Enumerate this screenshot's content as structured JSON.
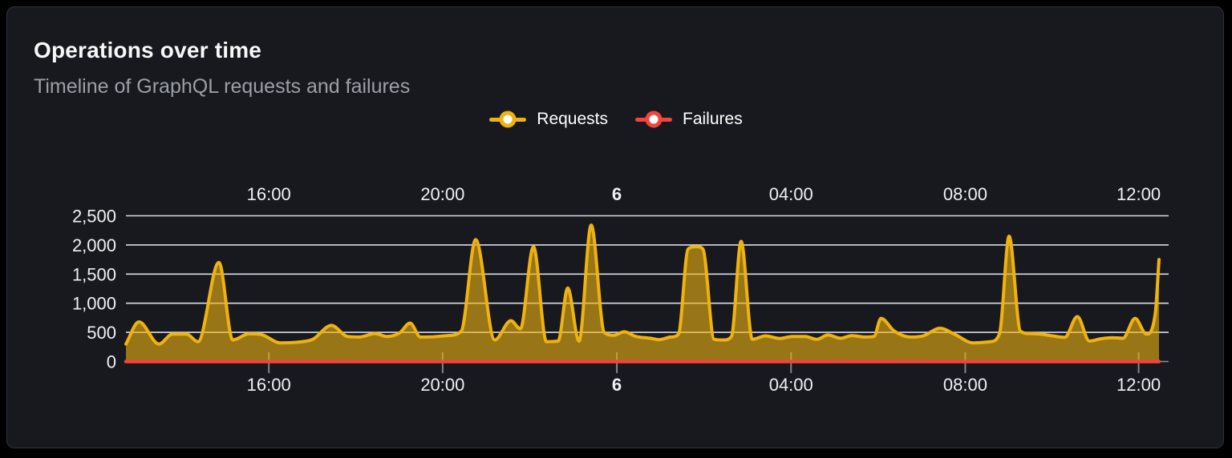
{
  "chart_data": {
    "type": "area",
    "title": "Operations over time",
    "subtitle": "Timeline of GraphQL requests and failures",
    "legend_position": "top-center",
    "grid": "horizontal",
    "x_axis": {
      "unit": "hours-from-start",
      "domain": [
        0,
        23.78
      ],
      "mirrored_top_labels": true,
      "ticks": [
        {
          "t": 3.29,
          "label": "16:00",
          "bold": false
        },
        {
          "t": 7.29,
          "label": "20:00",
          "bold": false
        },
        {
          "t": 11.3,
          "label": "6",
          "bold": true
        },
        {
          "t": 15.31,
          "label": "04:00",
          "bold": false
        },
        {
          "t": 19.32,
          "label": "08:00",
          "bold": false
        },
        {
          "t": 23.31,
          "label": "12:00",
          "bold": false
        }
      ]
    },
    "y_axis": {
      "domain": [
        0,
        2500
      ],
      "ticks": [
        {
          "v": 0,
          "label": "0"
        },
        {
          "v": 500,
          "label": "500"
        },
        {
          "v": 1000,
          "label": "1,000"
        },
        {
          "v": 1500,
          "label": "1,500"
        },
        {
          "v": 2000,
          "label": "2,000"
        },
        {
          "v": 2500,
          "label": "2,500"
        }
      ]
    },
    "series": [
      {
        "name": "Requests",
        "type": "areaspline",
        "color": "#efb310",
        "fill_opacity": 0.6,
        "points": [
          [
            0,
            300
          ],
          [
            0.3,
            680
          ],
          [
            0.76,
            300
          ],
          [
            1.07,
            470
          ],
          [
            1.39,
            470
          ],
          [
            1.66,
            340
          ],
          [
            2.14,
            1700
          ],
          [
            2.46,
            370
          ],
          [
            2.83,
            475
          ],
          [
            3.1,
            465
          ],
          [
            3.56,
            320
          ],
          [
            3.93,
            330
          ],
          [
            4.3,
            380
          ],
          [
            4.73,
            620
          ],
          [
            5.1,
            430
          ],
          [
            5.37,
            420
          ],
          [
            5.74,
            480
          ],
          [
            6.0,
            430
          ],
          [
            6.3,
            490
          ],
          [
            6.54,
            660
          ],
          [
            6.78,
            420
          ],
          [
            7.07,
            425
          ],
          [
            7.41,
            445
          ],
          [
            7.72,
            520
          ],
          [
            8.05,
            2090
          ],
          [
            8.49,
            370
          ],
          [
            8.86,
            700
          ],
          [
            9.08,
            560
          ],
          [
            9.38,
            1970
          ],
          [
            9.68,
            340
          ],
          [
            9.95,
            350
          ],
          [
            10.17,
            1260
          ],
          [
            10.43,
            350
          ],
          [
            10.71,
            2340
          ],
          [
            11.01,
            500
          ],
          [
            11.23,
            450
          ],
          [
            11.47,
            510
          ],
          [
            11.74,
            430
          ],
          [
            12.06,
            400
          ],
          [
            12.28,
            375
          ],
          [
            12.54,
            420
          ],
          [
            12.72,
            470
          ],
          [
            12.94,
            1930
          ],
          [
            13.13,
            1970
          ],
          [
            13.28,
            1930
          ],
          [
            13.54,
            380
          ],
          [
            13.76,
            370
          ],
          [
            13.94,
            430
          ],
          [
            14.16,
            2060
          ],
          [
            14.42,
            380
          ],
          [
            14.72,
            440
          ],
          [
            15.05,
            395
          ],
          [
            15.34,
            430
          ],
          [
            15.64,
            430
          ],
          [
            15.9,
            380
          ],
          [
            16.16,
            455
          ],
          [
            16.45,
            400
          ],
          [
            16.71,
            445
          ],
          [
            17.01,
            420
          ],
          [
            17.22,
            430
          ],
          [
            17.38,
            740
          ],
          [
            17.69,
            520
          ],
          [
            18.06,
            420
          ],
          [
            18.35,
            440
          ],
          [
            18.74,
            570
          ],
          [
            19.07,
            470
          ],
          [
            19.5,
            320
          ],
          [
            19.9,
            340
          ],
          [
            20.11,
            480
          ],
          [
            20.33,
            2150
          ],
          [
            20.59,
            520
          ],
          [
            20.81,
            480
          ],
          [
            21.05,
            470
          ],
          [
            21.33,
            440
          ],
          [
            21.61,
            415
          ],
          [
            21.9,
            770
          ],
          [
            22.18,
            350
          ],
          [
            22.44,
            390
          ],
          [
            22.7,
            410
          ],
          [
            22.95,
            400
          ],
          [
            23.23,
            740
          ],
          [
            23.49,
            470
          ],
          [
            23.69,
            800
          ],
          [
            23.78,
            1750
          ]
        ]
      },
      {
        "name": "Failures",
        "type": "line",
        "color": "#f2453d",
        "points": [
          [
            0,
            0
          ],
          [
            23.78,
            0
          ]
        ]
      }
    ],
    "palette": {
      "page_background": "#000000",
      "panel_background": "#17191e",
      "gridline": "#d9dde3",
      "axis_line": "#8a9199",
      "axis_text": "#eef0f3",
      "title_text": "#f7f8f8",
      "subtitle_text": "#9aa0a7"
    }
  }
}
